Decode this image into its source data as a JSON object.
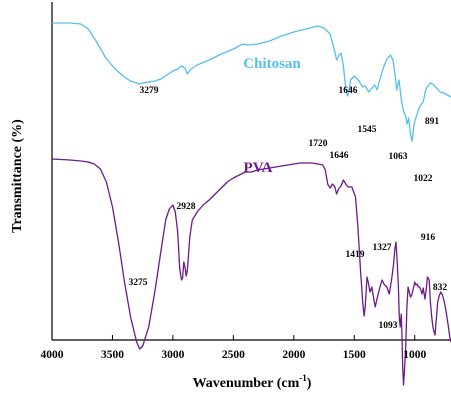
{
  "chart_data": {
    "type": "line",
    "xlabel": "Wavenumber (cm",
    "xlabel_sup": "-1",
    "xlabel_end": ")",
    "ylabel": "Transmittance (%)",
    "xlim": [
      4000,
      700
    ],
    "x_reversed": true,
    "xticks": [
      "4000",
      "3500",
      "3000",
      "2500",
      "2000",
      "1500",
      "1000"
    ],
    "y_ticks_labeled": false,
    "grid": false,
    "colors": {
      "Chitosan": "#55bfef",
      "PVA": "#6a1b8c"
    },
    "series": [
      {
        "name": "Chitosan",
        "label_color": "#55bfef",
        "points": [
          [
            4000,
            3
          ],
          [
            3850,
            3
          ],
          [
            3760,
            4
          ],
          [
            3700,
            9
          ],
          [
            3630,
            22
          ],
          [
            3560,
            37
          ],
          [
            3500,
            46
          ],
          [
            3450,
            52
          ],
          [
            3400,
            57
          ],
          [
            3350,
            61
          ],
          [
            3300,
            63
          ],
          [
            3279,
            64
          ],
          [
            3250,
            63
          ],
          [
            3200,
            62
          ],
          [
            3150,
            61
          ],
          [
            3100,
            59
          ],
          [
            3050,
            55
          ],
          [
            3000,
            51
          ],
          [
            2960,
            49
          ],
          [
            2930,
            46
          ],
          [
            2900,
            48
          ],
          [
            2880,
            54
          ],
          [
            2860,
            50
          ],
          [
            2800,
            45
          ],
          [
            2700,
            40
          ],
          [
            2600,
            34
          ],
          [
            2500,
            29
          ],
          [
            2420,
            24
          ],
          [
            2380,
            25
          ],
          [
            2300,
            24
          ],
          [
            2200,
            21
          ],
          [
            2100,
            16
          ],
          [
            2000,
            12
          ],
          [
            1900,
            9
          ],
          [
            1800,
            6
          ],
          [
            1750,
            8
          ],
          [
            1700,
            14
          ],
          [
            1660,
            32
          ],
          [
            1646,
            40
          ],
          [
            1630,
            36
          ],
          [
            1610,
            33
          ],
          [
            1590,
            46
          ],
          [
            1570,
            69
          ],
          [
            1555,
            76
          ],
          [
            1545,
            72
          ],
          [
            1530,
            60
          ],
          [
            1500,
            56
          ],
          [
            1460,
            61
          ],
          [
            1430,
            67
          ],
          [
            1410,
            66
          ],
          [
            1380,
            72
          ],
          [
            1360,
            69
          ],
          [
            1330,
            65
          ],
          [
            1310,
            70
          ],
          [
            1290,
            60
          ],
          [
            1260,
            48
          ],
          [
            1230,
            39
          ],
          [
            1200,
            35
          ],
          [
            1180,
            40
          ],
          [
            1160,
            57
          ],
          [
            1150,
            70
          ],
          [
            1130,
            60
          ],
          [
            1110,
            80
          ],
          [
            1090,
            92
          ],
          [
            1075,
            96
          ],
          [
            1063,
            104
          ],
          [
            1050,
            98
          ],
          [
            1035,
            114
          ],
          [
            1022,
            121
          ],
          [
            1005,
            104
          ],
          [
            985,
            96
          ],
          [
            965,
            88
          ],
          [
            945,
            84
          ],
          [
            930,
            82
          ],
          [
            910,
            70
          ],
          [
            891,
            66
          ],
          [
            870,
            63
          ],
          [
            850,
            64
          ],
          [
            820,
            68
          ],
          [
            790,
            72
          ],
          [
            760,
            73
          ],
          [
            730,
            75
          ],
          [
            700,
            77
          ]
        ]
      },
      {
        "name": "PVA",
        "label_color": "#6a1b8c",
        "points": [
          [
            4000,
            57
          ],
          [
            3850,
            58
          ],
          [
            3760,
            59
          ],
          [
            3700,
            60
          ],
          [
            3650,
            62
          ],
          [
            3600,
            67
          ],
          [
            3550,
            80
          ],
          [
            3500,
            105
          ],
          [
            3450,
            140
          ],
          [
            3400,
            180
          ],
          [
            3350,
            215
          ],
          [
            3300,
            240
          ],
          [
            3275,
            247
          ],
          [
            3250,
            244
          ],
          [
            3200,
            225
          ],
          [
            3150,
            190
          ],
          [
            3100,
            150
          ],
          [
            3060,
            118
          ],
          [
            3030,
            107
          ],
          [
            3000,
            103
          ],
          [
            2980,
            110
          ],
          [
            2960,
            130
          ],
          [
            2945,
            165
          ],
          [
            2935,
            174
          ],
          [
            2928,
            178
          ],
          [
            2920,
            176
          ],
          [
            2910,
            160
          ],
          [
            2900,
            165
          ],
          [
            2890,
            174
          ],
          [
            2880,
            168
          ],
          [
            2860,
            135
          ],
          [
            2840,
            118
          ],
          [
            2800,
            110
          ],
          [
            2750,
            103
          ],
          [
            2700,
            98
          ],
          [
            2650,
            92
          ],
          [
            2600,
            86
          ],
          [
            2550,
            80
          ],
          [
            2500,
            76
          ],
          [
            2450,
            73
          ],
          [
            2400,
            70
          ],
          [
            2350,
            70
          ],
          [
            2300,
            68
          ],
          [
            2250,
            67
          ],
          [
            2200,
            66
          ],
          [
            2150,
            65
          ],
          [
            2100,
            64
          ],
          [
            2050,
            63
          ],
          [
            2000,
            62
          ],
          [
            1950,
            61
          ],
          [
            1900,
            61
          ],
          [
            1850,
            61
          ],
          [
            1800,
            62
          ],
          [
            1760,
            63
          ],
          [
            1740,
            68
          ],
          [
            1720,
            82
          ],
          [
            1700,
            86
          ],
          [
            1680,
            82
          ],
          [
            1660,
            85
          ],
          [
            1646,
            92
          ],
          [
            1630,
            87
          ],
          [
            1610,
            84
          ],
          [
            1590,
            78
          ],
          [
            1570,
            82
          ],
          [
            1550,
            85
          ],
          [
            1520,
            85
          ],
          [
            1490,
            95
          ],
          [
            1470,
            125
          ],
          [
            1450,
            165
          ],
          [
            1430,
            200
          ],
          [
            1419,
            214
          ],
          [
            1410,
            205
          ],
          [
            1395,
            175
          ],
          [
            1385,
            180
          ],
          [
            1370,
            190
          ],
          [
            1355,
            185
          ],
          [
            1340,
            196
          ],
          [
            1327,
            205
          ],
          [
            1310,
            196
          ],
          [
            1290,
            186
          ],
          [
            1270,
            178
          ],
          [
            1250,
            183
          ],
          [
            1230,
            185
          ],
          [
            1210,
            192
          ],
          [
            1190,
            176
          ],
          [
            1175,
            162
          ],
          [
            1165,
            148
          ],
          [
            1155,
            140
          ],
          [
            1145,
            160
          ],
          [
            1135,
            185
          ],
          [
            1128,
            215
          ],
          [
            1120,
            225
          ],
          [
            1112,
            212
          ],
          [
            1106,
            230
          ],
          [
            1100,
            262
          ],
          [
            1093,
            283
          ],
          [
            1085,
            270
          ],
          [
            1075,
            245
          ],
          [
            1065,
            205
          ],
          [
            1055,
            185
          ],
          [
            1045,
            190
          ],
          [
            1035,
            195
          ],
          [
            1025,
            193
          ],
          [
            1010,
            186
          ],
          [
            1000,
            180
          ],
          [
            990,
            183
          ],
          [
            980,
            182
          ],
          [
            970,
            185
          ],
          [
            960,
            185
          ],
          [
            950,
            188
          ],
          [
            940,
            192
          ],
          [
            930,
            186
          ],
          [
            916,
            197
          ],
          [
            905,
            188
          ],
          [
            895,
            175
          ],
          [
            880,
            178
          ],
          [
            870,
            200
          ],
          [
            860,
            215
          ],
          [
            850,
            225
          ],
          [
            840,
            230
          ],
          [
            832,
            233
          ],
          [
            820,
            215
          ],
          [
            810,
            200
          ],
          [
            800,
            195
          ],
          [
            785,
            190
          ],
          [
            770,
            193
          ],
          [
            755,
            200
          ],
          [
            740,
            210
          ],
          [
            725,
            222
          ],
          [
            710,
            235
          ],
          [
            700,
            240
          ]
        ]
      }
    ],
    "annotations": [
      {
        "text": "Chitosan",
        "kind": "series"
      },
      {
        "text": "PVA",
        "kind": "series"
      },
      {
        "text": "3279",
        "kind": "peak"
      },
      {
        "text": "1646",
        "kind": "peak"
      },
      {
        "text": "1545",
        "kind": "peak"
      },
      {
        "text": "891",
        "kind": "peak"
      },
      {
        "text": "1022",
        "kind": "peak"
      },
      {
        "text": "1063",
        "kind": "peak"
      },
      {
        "text": "1720",
        "kind": "peak"
      },
      {
        "text": "1646",
        "kind": "peak"
      },
      {
        "text": "2928",
        "kind": "peak"
      },
      {
        "text": "3275",
        "kind": "peak"
      },
      {
        "text": "1419",
        "kind": "peak"
      },
      {
        "text": "1327",
        "kind": "peak"
      },
      {
        "text": "916",
        "kind": "peak"
      },
      {
        "text": "832",
        "kind": "peak"
      },
      {
        "text": "1093",
        "kind": "peak"
      }
    ]
  }
}
